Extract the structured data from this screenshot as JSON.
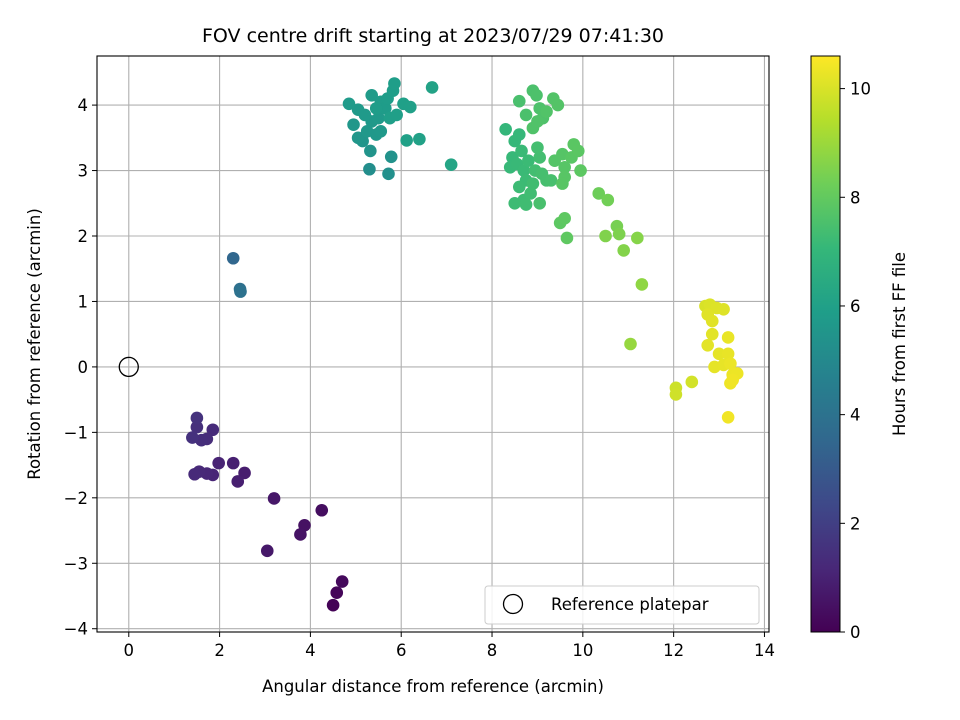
{
  "chart_data": {
    "type": "scatter",
    "title": "FOV centre drift starting at 2023/07/29 07:41:30",
    "xlabel": "Angular distance from reference (arcmin)",
    "ylabel": "Rotation from reference (arcmin)",
    "xlim": [
      -0.7,
      14.1
    ],
    "ylim": [
      -4.05,
      4.75
    ],
    "xticks": [
      0,
      2,
      4,
      6,
      8,
      10,
      12,
      14
    ],
    "yticks": [
      -4,
      -3,
      -2,
      -1,
      0,
      1,
      2,
      3,
      4
    ],
    "grid": true,
    "legend": {
      "placement": "lower-right",
      "entries": [
        {
          "label": "Reference platepar",
          "marker": "open-circle"
        }
      ]
    },
    "reference_point": {
      "x": 0,
      "y": 0
    },
    "colorbar": {
      "label": "Hours from first FF file",
      "colormap": "viridis",
      "range": [
        0,
        10.6
      ],
      "ticks": [
        0,
        2,
        4,
        6,
        8,
        10
      ]
    },
    "points": [
      {
        "x": 4.5,
        "y": -3.64,
        "h": 0.05
      },
      {
        "x": 4.58,
        "y": -3.45,
        "h": 0.15
      },
      {
        "x": 4.7,
        "y": -3.28,
        "h": 0.25
      },
      {
        "x": 4.25,
        "y": -2.19,
        "h": 0.4
      },
      {
        "x": 3.87,
        "y": -2.42,
        "h": 0.5
      },
      {
        "x": 3.78,
        "y": -2.56,
        "h": 0.55
      },
      {
        "x": 3.2,
        "y": -2.01,
        "h": 0.65
      },
      {
        "x": 3.05,
        "y": -2.81,
        "h": 0.7
      },
      {
        "x": 2.55,
        "y": -1.62,
        "h": 0.85
      },
      {
        "x": 2.4,
        "y": -1.75,
        "h": 0.9
      },
      {
        "x": 2.3,
        "y": -1.47,
        "h": 0.95
      },
      {
        "x": 1.98,
        "y": -1.47,
        "h": 1.05
      },
      {
        "x": 1.85,
        "y": -1.65,
        "h": 1.1
      },
      {
        "x": 1.72,
        "y": -1.63,
        "h": 1.15
      },
      {
        "x": 1.55,
        "y": -1.6,
        "h": 1.2
      },
      {
        "x": 1.45,
        "y": -1.64,
        "h": 1.25
      },
      {
        "x": 1.85,
        "y": -0.96,
        "h": 1.3
      },
      {
        "x": 1.72,
        "y": -1.1,
        "h": 1.35
      },
      {
        "x": 1.6,
        "y": -1.12,
        "h": 1.4
      },
      {
        "x": 1.5,
        "y": -0.92,
        "h": 1.45
      },
      {
        "x": 1.4,
        "y": -1.08,
        "h": 1.5
      },
      {
        "x": 1.5,
        "y": -0.78,
        "h": 1.55
      },
      {
        "x": 2.3,
        "y": 1.66,
        "h": 3.5
      },
      {
        "x": 2.45,
        "y": 1.19,
        "h": 3.9
      },
      {
        "x": 2.46,
        "y": 1.15,
        "h": 4.0
      },
      {
        "x": 5.3,
        "y": 3.02,
        "h": 5.2
      },
      {
        "x": 5.72,
        "y": 2.95,
        "h": 5.3
      },
      {
        "x": 5.78,
        "y": 3.21,
        "h": 5.4
      },
      {
        "x": 5.32,
        "y": 3.3,
        "h": 5.45
      },
      {
        "x": 5.15,
        "y": 3.45,
        "h": 5.5
      },
      {
        "x": 5.05,
        "y": 3.5,
        "h": 5.55
      },
      {
        "x": 4.95,
        "y": 3.7,
        "h": 5.6
      },
      {
        "x": 5.25,
        "y": 3.6,
        "h": 5.62
      },
      {
        "x": 5.45,
        "y": 3.55,
        "h": 5.64
      },
      {
        "x": 5.55,
        "y": 3.6,
        "h": 5.66
      },
      {
        "x": 5.35,
        "y": 3.75,
        "h": 5.68
      },
      {
        "x": 5.5,
        "y": 3.8,
        "h": 5.7
      },
      {
        "x": 5.2,
        "y": 3.85,
        "h": 5.72
      },
      {
        "x": 5.05,
        "y": 3.93,
        "h": 5.74
      },
      {
        "x": 4.85,
        "y": 4.02,
        "h": 5.76
      },
      {
        "x": 5.35,
        "y": 4.15,
        "h": 5.78
      },
      {
        "x": 5.55,
        "y": 4.05,
        "h": 5.8
      },
      {
        "x": 5.65,
        "y": 3.95,
        "h": 5.82
      },
      {
        "x": 5.45,
        "y": 3.95,
        "h": 5.84
      },
      {
        "x": 5.7,
        "y": 4.1,
        "h": 5.86
      },
      {
        "x": 5.82,
        "y": 4.22,
        "h": 5.88
      },
      {
        "x": 5.85,
        "y": 4.33,
        "h": 5.9
      },
      {
        "x": 5.75,
        "y": 3.8,
        "h": 5.92
      },
      {
        "x": 5.9,
        "y": 3.85,
        "h": 5.94
      },
      {
        "x": 6.05,
        "y": 4.02,
        "h": 5.96
      },
      {
        "x": 6.2,
        "y": 3.97,
        "h": 5.98
      },
      {
        "x": 6.12,
        "y": 3.46,
        "h": 6.0
      },
      {
        "x": 6.4,
        "y": 3.48,
        "h": 6.05
      },
      {
        "x": 6.68,
        "y": 4.27,
        "h": 6.1
      },
      {
        "x": 7.1,
        "y": 3.09,
        "h": 6.2
      },
      {
        "x": 8.3,
        "y": 3.63,
        "h": 7.0
      },
      {
        "x": 8.5,
        "y": 3.45,
        "h": 7.05
      },
      {
        "x": 8.6,
        "y": 3.55,
        "h": 7.08
      },
      {
        "x": 8.45,
        "y": 3.2,
        "h": 7.1
      },
      {
        "x": 8.4,
        "y": 3.05,
        "h": 7.12
      },
      {
        "x": 8.55,
        "y": 3.1,
        "h": 7.14
      },
      {
        "x": 8.65,
        "y": 3.3,
        "h": 7.16
      },
      {
        "x": 8.7,
        "y": 3.0,
        "h": 7.18
      },
      {
        "x": 8.8,
        "y": 3.15,
        "h": 7.2
      },
      {
        "x": 8.75,
        "y": 2.85,
        "h": 7.22
      },
      {
        "x": 8.6,
        "y": 2.75,
        "h": 7.24
      },
      {
        "x": 8.5,
        "y": 2.5,
        "h": 7.26
      },
      {
        "x": 8.7,
        "y": 2.55,
        "h": 7.28
      },
      {
        "x": 8.75,
        "y": 2.48,
        "h": 7.3
      },
      {
        "x": 8.85,
        "y": 2.65,
        "h": 7.32
      },
      {
        "x": 8.9,
        "y": 2.8,
        "h": 7.34
      },
      {
        "x": 8.95,
        "y": 3.0,
        "h": 7.36
      },
      {
        "x": 9.05,
        "y": 3.2,
        "h": 7.38
      },
      {
        "x": 9.0,
        "y": 3.35,
        "h": 7.4
      },
      {
        "x": 9.1,
        "y": 2.95,
        "h": 7.42
      },
      {
        "x": 9.2,
        "y": 2.85,
        "h": 7.44
      },
      {
        "x": 9.3,
        "y": 2.85,
        "h": 7.46
      },
      {
        "x": 9.05,
        "y": 2.5,
        "h": 7.48
      },
      {
        "x": 8.6,
        "y": 4.06,
        "h": 7.5
      },
      {
        "x": 8.75,
        "y": 3.85,
        "h": 7.52
      },
      {
        "x": 8.9,
        "y": 4.22,
        "h": 7.54
      },
      {
        "x": 8.98,
        "y": 4.15,
        "h": 7.56
      },
      {
        "x": 9.05,
        "y": 3.95,
        "h": 7.58
      },
      {
        "x": 9.12,
        "y": 3.8,
        "h": 7.6
      },
      {
        "x": 8.9,
        "y": 3.65,
        "h": 7.62
      },
      {
        "x": 9.0,
        "y": 3.75,
        "h": 7.64
      },
      {
        "x": 9.2,
        "y": 3.9,
        "h": 7.66
      },
      {
        "x": 9.35,
        "y": 4.1,
        "h": 7.68
      },
      {
        "x": 9.45,
        "y": 4.0,
        "h": 7.7
      },
      {
        "x": 9.38,
        "y": 3.15,
        "h": 7.72
      },
      {
        "x": 9.55,
        "y": 3.25,
        "h": 7.74
      },
      {
        "x": 9.6,
        "y": 3.05,
        "h": 7.76
      },
      {
        "x": 9.6,
        "y": 2.9,
        "h": 7.78
      },
      {
        "x": 9.55,
        "y": 2.8,
        "h": 7.8
      },
      {
        "x": 9.75,
        "y": 3.2,
        "h": 7.82
      },
      {
        "x": 9.8,
        "y": 3.4,
        "h": 7.84
      },
      {
        "x": 9.9,
        "y": 3.3,
        "h": 7.86
      },
      {
        "x": 9.95,
        "y": 3.0,
        "h": 7.88
      },
      {
        "x": 9.5,
        "y": 2.2,
        "h": 7.9
      },
      {
        "x": 9.6,
        "y": 2.27,
        "h": 7.92
      },
      {
        "x": 9.65,
        "y": 1.97,
        "h": 7.94
      },
      {
        "x": 10.35,
        "y": 2.65,
        "h": 8.2
      },
      {
        "x": 10.55,
        "y": 2.55,
        "h": 8.3
      },
      {
        "x": 10.75,
        "y": 2.15,
        "h": 8.4
      },
      {
        "x": 10.8,
        "y": 2.03,
        "h": 8.5
      },
      {
        "x": 10.5,
        "y": 2.0,
        "h": 8.55
      },
      {
        "x": 10.9,
        "y": 1.78,
        "h": 8.6
      },
      {
        "x": 11.2,
        "y": 1.97,
        "h": 8.65
      },
      {
        "x": 11.3,
        "y": 1.26,
        "h": 8.8
      },
      {
        "x": 11.05,
        "y": 0.35,
        "h": 8.9
      },
      {
        "x": 12.05,
        "y": -0.32,
        "h": 9.8
      },
      {
        "x": 12.05,
        "y": -0.42,
        "h": 9.85
      },
      {
        "x": 12.4,
        "y": -0.23,
        "h": 9.9
      },
      {
        "x": 12.7,
        "y": 0.93,
        "h": 10.0
      },
      {
        "x": 12.8,
        "y": 0.95,
        "h": 10.05
      },
      {
        "x": 12.95,
        "y": 0.9,
        "h": 10.08
      },
      {
        "x": 13.1,
        "y": 0.88,
        "h": 10.1
      },
      {
        "x": 12.75,
        "y": 0.8,
        "h": 10.12
      },
      {
        "x": 12.85,
        "y": 0.7,
        "h": 10.14
      },
      {
        "x": 12.85,
        "y": 0.5,
        "h": 10.16
      },
      {
        "x": 12.75,
        "y": 0.33,
        "h": 10.18
      },
      {
        "x": 13.0,
        "y": 0.2,
        "h": 10.2
      },
      {
        "x": 12.9,
        "y": 0.0,
        "h": 10.22
      },
      {
        "x": 13.1,
        "y": 0.03,
        "h": 10.24
      },
      {
        "x": 13.2,
        "y": 0.2,
        "h": 10.26
      },
      {
        "x": 13.2,
        "y": 0.45,
        "h": 10.28
      },
      {
        "x": 13.25,
        "y": 0.05,
        "h": 10.3
      },
      {
        "x": 13.3,
        "y": -0.12,
        "h": 10.32
      },
      {
        "x": 13.4,
        "y": -0.1,
        "h": 10.34
      },
      {
        "x": 13.25,
        "y": -0.25,
        "h": 10.36
      },
      {
        "x": 13.3,
        "y": -0.2,
        "h": 10.38
      },
      {
        "x": 13.2,
        "y": -0.77,
        "h": 10.4
      }
    ]
  }
}
